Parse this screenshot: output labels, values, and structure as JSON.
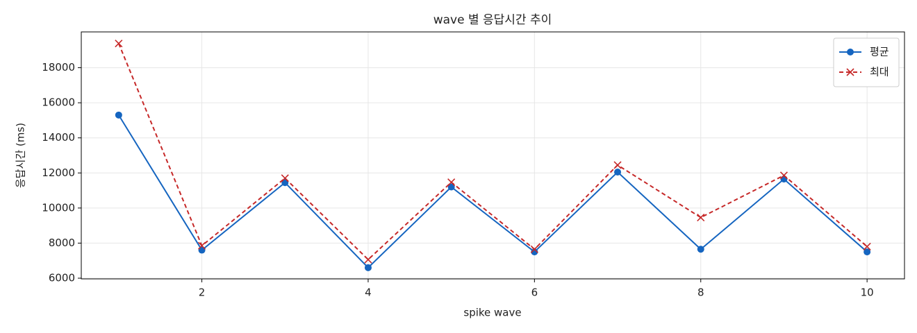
{
  "chart_data": {
    "type": "line",
    "title": "wave 별 응답시간 추이",
    "xlabel": "spike wave",
    "ylabel": "응답시간 (ms)",
    "x": [
      1,
      2,
      3,
      4,
      5,
      6,
      7,
      8,
      9,
      10
    ],
    "series": [
      {
        "name": "평균",
        "color": "#1565c0",
        "marker": "circle",
        "dash": false,
        "values": [
          15300,
          7600,
          11450,
          6600,
          11200,
          7500,
          12050,
          7650,
          11650,
          7500
        ]
      },
      {
        "name": "최대",
        "color": "#c62828",
        "marker": "x",
        "dash": true,
        "values": [
          19380,
          7850,
          11700,
          7060,
          11470,
          7650,
          12450,
          9460,
          11860,
          7800
        ]
      }
    ],
    "xlim": [
      0.55,
      10.45
    ],
    "xticks": [
      2,
      4,
      6,
      8,
      10
    ],
    "ylim": [
      5960,
      20040
    ],
    "yticks": [
      6000,
      8000,
      10000,
      12000,
      14000,
      16000,
      18000
    ],
    "grid": true,
    "legend": "upper right"
  }
}
